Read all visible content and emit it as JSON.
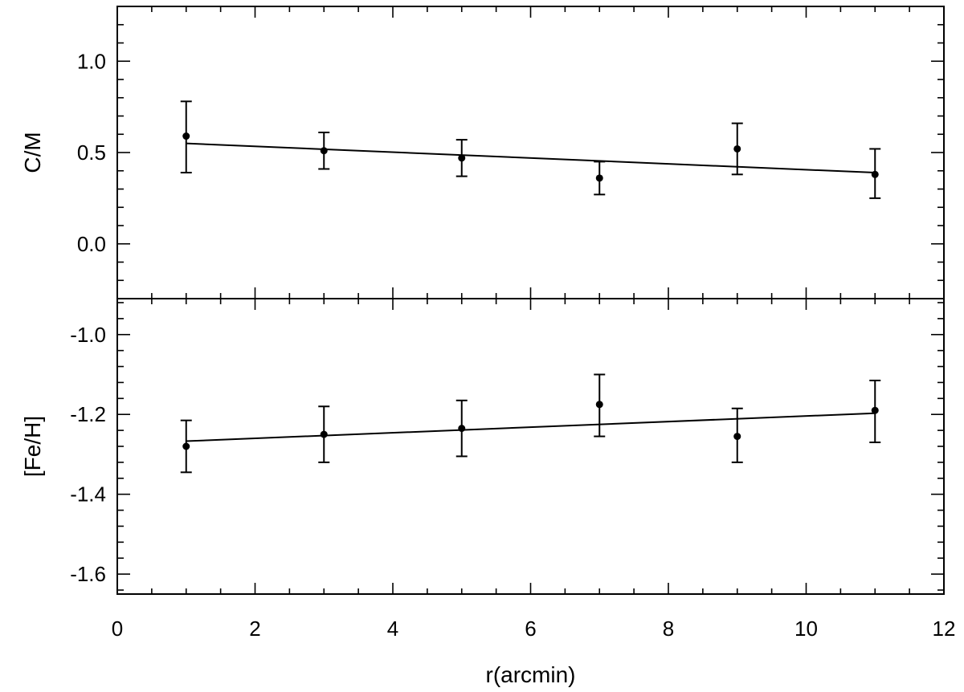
{
  "chart_data": [
    {
      "type": "scatter",
      "panel": "top",
      "ylabel": "C/M",
      "xlabel": "",
      "xlim": [
        0,
        12
      ],
      "ylim": [
        -0.3,
        1.3
      ],
      "yticks": [
        0.0,
        0.5,
        1.0
      ],
      "ytick_labels": [
        "0.0",
        "0.5",
        "1.0"
      ],
      "points": [
        {
          "x": 1,
          "y": 0.59,
          "err_low": 0.39,
          "err_high": 0.78
        },
        {
          "x": 3,
          "y": 0.51,
          "err_low": 0.41,
          "err_high": 0.61
        },
        {
          "x": 5,
          "y": 0.47,
          "err_low": 0.37,
          "err_high": 0.57
        },
        {
          "x": 7,
          "y": 0.36,
          "err_low": 0.27,
          "err_high": 0.45
        },
        {
          "x": 9,
          "y": 0.52,
          "err_low": 0.38,
          "err_high": 0.66
        },
        {
          "x": 11,
          "y": 0.38,
          "err_low": 0.25,
          "err_high": 0.52
        }
      ],
      "fit": {
        "x": [
          1,
          11
        ],
        "y": [
          0.55,
          0.39
        ]
      }
    },
    {
      "type": "scatter",
      "panel": "bottom",
      "ylabel": "[Fe/H]",
      "xlabel": "r(arcmin)",
      "xlim": [
        0,
        12
      ],
      "ylim": [
        -1.65,
        -0.91
      ],
      "yticks": [
        -1.6,
        -1.4,
        -1.2,
        -1.0
      ],
      "ytick_labels": [
        "-1.6",
        "-1.4",
        "-1.2",
        "-1.0"
      ],
      "xticks": [
        0,
        2,
        4,
        6,
        8,
        10,
        12
      ],
      "xtick_labels": [
        "0",
        "2",
        "4",
        "6",
        "8",
        "10",
        "12"
      ],
      "points": [
        {
          "x": 1,
          "y": -1.28,
          "err_low": -1.345,
          "err_high": -1.215
        },
        {
          "x": 3,
          "y": -1.25,
          "err_low": -1.32,
          "err_high": -1.18
        },
        {
          "x": 5,
          "y": -1.235,
          "err_low": -1.305,
          "err_high": -1.165
        },
        {
          "x": 7,
          "y": -1.175,
          "err_low": -1.255,
          "err_high": -1.1
        },
        {
          "x": 9,
          "y": -1.255,
          "err_low": -1.32,
          "err_high": -1.185
        },
        {
          "x": 11,
          "y": -1.19,
          "err_low": -1.27,
          "err_high": -1.115
        }
      ],
      "fit": {
        "x": [
          1,
          11
        ],
        "y": [
          -1.267,
          -1.197
        ]
      }
    }
  ]
}
